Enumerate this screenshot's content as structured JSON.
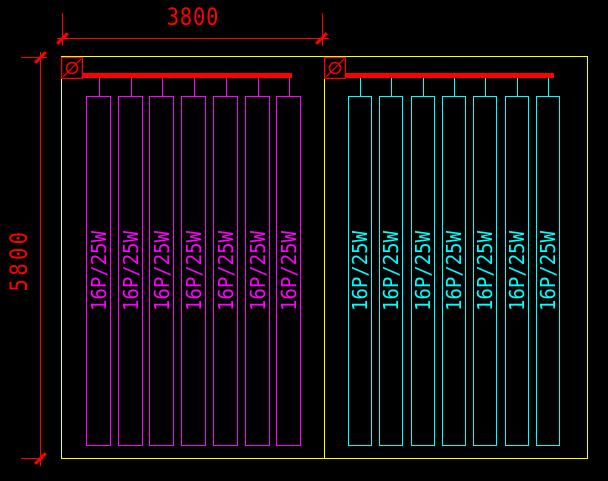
{
  "drawing": {
    "background_color": "#000000",
    "colors": {
      "dimension_red": "#ff0000",
      "busbar_red": "#ff0000",
      "outline_yellow": "#ffff00",
      "left_group_magenta": "#ff00ff",
      "right_group_cyan": "#00ffff"
    },
    "dimensions": {
      "top_width": "3800",
      "left_height": "5800"
    },
    "groups": [
      {
        "name": "left-panel-group",
        "color": "#ff00ff",
        "panel_count": 7,
        "panel_label": "16P/25W",
        "feed_symbol": "diameter-circle"
      },
      {
        "name": "right-panel-group",
        "color": "#00ffff",
        "panel_count": 7,
        "panel_label": "16P/25W",
        "feed_symbol": "diameter-circle"
      }
    ]
  }
}
